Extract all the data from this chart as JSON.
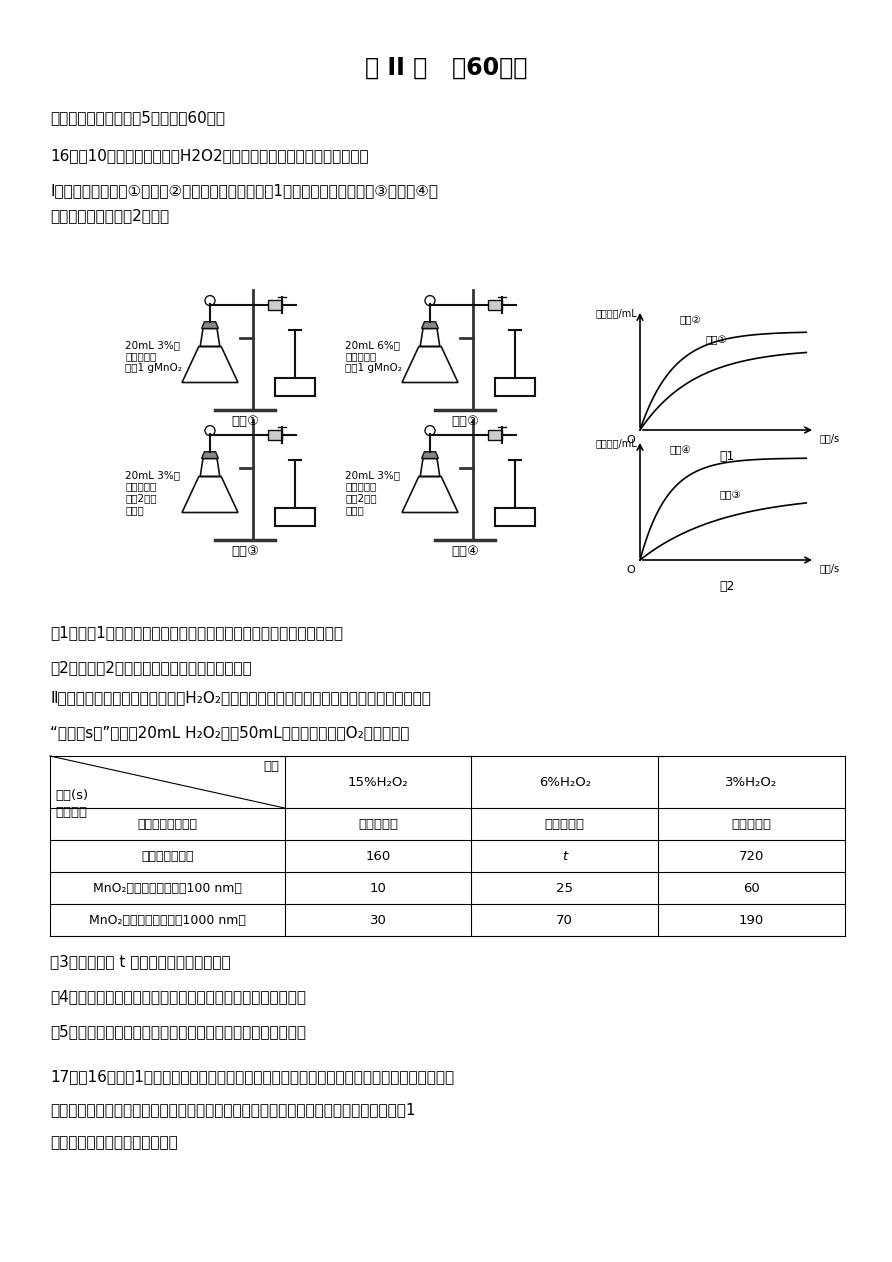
{
  "title": "第 II 卷   （60分）",
  "background": "#ffffff",
  "text_color": "#000000",
  "line1": "三、非选择题：本题兲5个题，全60分。",
  "q16_header_a": "16．（10分）某实验小组对H",
  "q16_header_b": "2",
  "q16_header_c": "O",
  "q16_header_d": "2",
  "q16_header_e": "分解速率的影响因素做了如下探究：",
  "q16_I": "Ⅰ．甲同学依据实验①和实验②所得数据进行处理得图1曲线；乙同学依据实验③和实验④所",
  "q16_I2": "得数据进行处理得图2曲线。",
  "exp1_label": "20mL 3%的\n过氧化氢溶\n液和1 gMnO₂",
  "exp2_label": "20mL 6%的\n过氧化氢溶\n液和1 gMnO₂",
  "exp3_label": "20mL 3%的\n过氧化氢溶\n液和2滴稀\n酸溶液",
  "exp4_label": "20mL 3%的\n过氧化氢溶\n液和2滴稀\n碱溶液",
  "exp1_name": "实验①",
  "exp2_name": "实验②",
  "exp3_name": "实验③",
  "exp4_name": "实验④",
  "fig1_name": "图1",
  "fig2_name": "图2",
  "fig1_ylabel": "气体体积/mL",
  "fig1_xlabel": "时间/s",
  "fig2_ylabel": "气体体积/mL",
  "fig2_xlabel": "时间/s",
  "fig1_curve2": "实验②",
  "fig1_curve1": "实验①",
  "fig2_curve2": "实验④",
  "fig2_curve1": "实验③",
  "q1": "（1）由图1可知：该因素对过氧化氢分解速率的影响是＿＿＿＿＿＿。",
  "q2": "（2）分析图2，可得出的结论是＿＿＿＿＿＿。",
  "q16_II": "Ⅱ．丙同学设计了几组实验，探究H₂O₂影响分解速率的其他因素，记录数据如表。已知表中",
  "q16_II2": "“时间（s）”表示用20mL H₂O₂制取50mL（常温常压下）O₂所需的时间",
  "table_col_header": "浓度",
  "table_col1": "15%H₂O₂",
  "table_col2": "6%H₂O₂",
  "table_col3": "3%H₂O₂",
  "table_row1": "无唇化剂、不加热",
  "table_row2": "无唇化剂、加热",
  "table_row3": "MnO₂粉末（颗粒直径：100 nm）",
  "table_row4": "MnO₂粉末（颗粒直径：1000 nm）",
  "t11": "几乎不反应",
  "t12": "几乎不反应",
  "t13": "几乎不反应",
  "t21": "160",
  "t22": "t",
  "t23": "720",
  "t31": "10",
  "t32": "25",
  "t33": "60",
  "t41": "30",
  "t42": "70",
  "t43": "190",
  "q3": "（3）推测时间 t 的范围为＿＿＿＿＿＿。",
  "q4": "（4）写出上述实验中发生反应的化学方程式：＿＿＿＿＿＿。",
  "q5": "（5）实验结果表明，唇化剂的唇化效果与＿＿＿＿＿＿有关。",
  "q17_header": "17．（16分）（1）鐵是一种廉价的金属，除了作为重要的结构材料外又有了新的用途。磷酸聚",
  "q17_line2": "合物鐵锂电池以其廉价、高容量和安全性逐渐占据市场。高鐵电池的研究也在进行中。图1",
  "q17_line3": "是高鐵电池的实验装置示意图："
}
